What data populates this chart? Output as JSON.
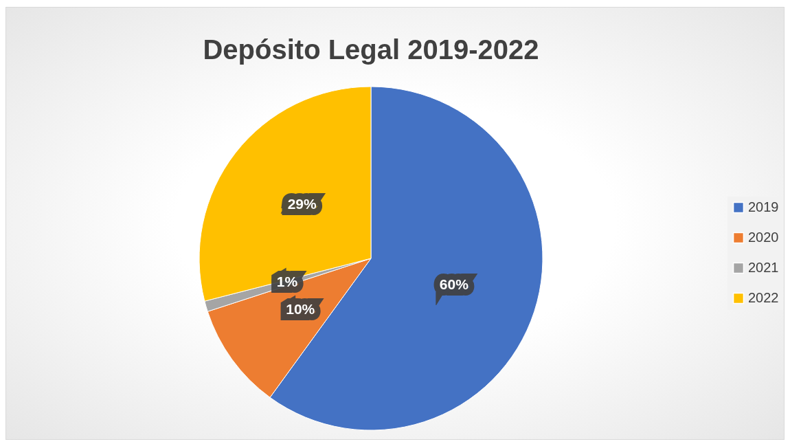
{
  "chart_data": {
    "type": "pie",
    "title": "Depósito Legal 2019-2022",
    "categories": [
      "2019",
      "2020",
      "2021",
      "2022"
    ],
    "values": [
      60,
      10,
      1,
      29
    ],
    "colors": [
      "#4472c4",
      "#ed7d31",
      "#a5a5a5",
      "#ffc000"
    ],
    "value_labels": [
      "60%",
      "10%",
      "1%",
      "29%"
    ],
    "legend": "right"
  }
}
